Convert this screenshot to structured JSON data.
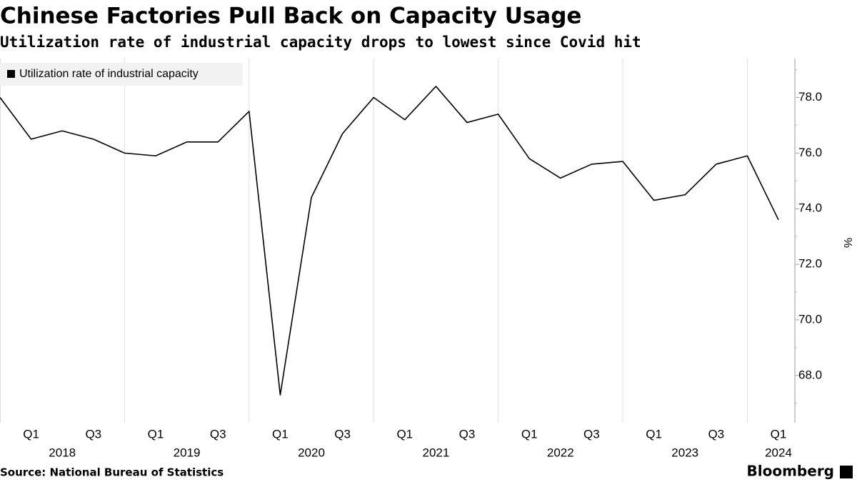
{
  "chart_data": {
    "type": "line",
    "title": "Chinese Factories Pull Back on Capacity Usage",
    "subtitle": "Utilization rate of industrial capacity drops to lowest since Covid hit",
    "source": "Source: National Bureau of Statistics",
    "brand": "Bloomberg",
    "y_label": "%",
    "categories": [
      null,
      "Q1",
      null,
      "Q3",
      null,
      "Q1",
      null,
      "Q3",
      null,
      "Q1",
      null,
      "Q3",
      null,
      "Q1",
      null,
      "Q3",
      null,
      "Q1",
      null,
      "Q3",
      null,
      "Q1",
      null,
      "Q3",
      null,
      "Q1"
    ],
    "years": [
      "2018",
      "2019",
      "2020",
      "2021",
      "2022",
      "2023",
      "2024"
    ],
    "series": [
      {
        "name": "Utilization rate of industrial capacity",
        "color": "#000000",
        "values": [
          78.0,
          76.5,
          76.8,
          76.5,
          76.0,
          75.9,
          76.4,
          76.4,
          77.5,
          67.3,
          74.4,
          76.7,
          78.0,
          77.2,
          78.4,
          77.1,
          77.4,
          75.8,
          75.1,
          75.6,
          75.7,
          74.3,
          74.5,
          75.6,
          75.9,
          73.6
        ]
      }
    ],
    "ylim": [
      66.3,
      79.4
    ],
    "yticks": [
      {
        "value": 68,
        "label": "68.0"
      },
      {
        "value": 70,
        "label": "70.0"
      },
      {
        "value": 72,
        "label": "72.0"
      },
      {
        "value": 74,
        "label": "74.0"
      },
      {
        "value": 76,
        "label": "76.0"
      },
      {
        "value": 78,
        "label": "78.0"
      }
    ],
    "legend": "top-left"
  }
}
